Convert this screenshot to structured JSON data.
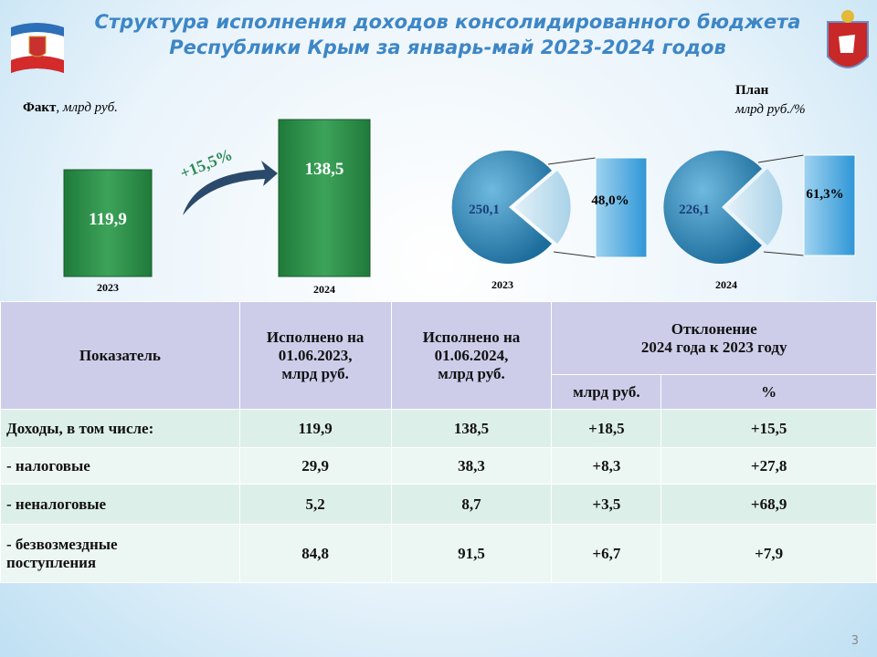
{
  "header": {
    "title_line1": "Структура исполнения доходов консолидированного бюджета",
    "title_line2": "Республики Крым за январь-май 2023-2024 годов"
  },
  "fact": {
    "label": "Факт",
    "units": ", млрд руб.",
    "growth": "+15,5%",
    "bars": [
      {
        "year": "2023",
        "value": "119,9"
      },
      {
        "year": "2024",
        "value": "138,5"
      }
    ]
  },
  "plan": {
    "label": "План",
    "units": "млрд руб./%",
    "pies": [
      {
        "year": "2023",
        "value": "250,1",
        "share": "48,0%"
      },
      {
        "year": "2024",
        "value": "226,1",
        "share": "61,3%"
      }
    ]
  },
  "table": {
    "header": {
      "indicator": "Показатель",
      "col1": "Исполнено на\n01.06.2023,\nмлрд руб.",
      "col2": "Исполнено на\n01.06.2024,\nмлрд руб.",
      "deviation": "Отклонение\n2024 года к 2023 году",
      "dev_abs": "млрд руб.",
      "dev_pct": "%"
    },
    "rows": [
      [
        "Доходы, в том числе:",
        "119,9",
        "138,5",
        "+18,5",
        "+15,5"
      ],
      [
        " - налоговые",
        "29,9",
        "38,3",
        "+8,3",
        "+27,8"
      ],
      [
        "- неналоговые",
        "5,2",
        "8,7",
        "+3,5",
        "+68,9"
      ],
      [
        "- безвозмездные\nпоступления",
        "84,8",
        "91,5",
        "+6,7",
        "+7,9"
      ]
    ]
  },
  "page_number": "3"
}
